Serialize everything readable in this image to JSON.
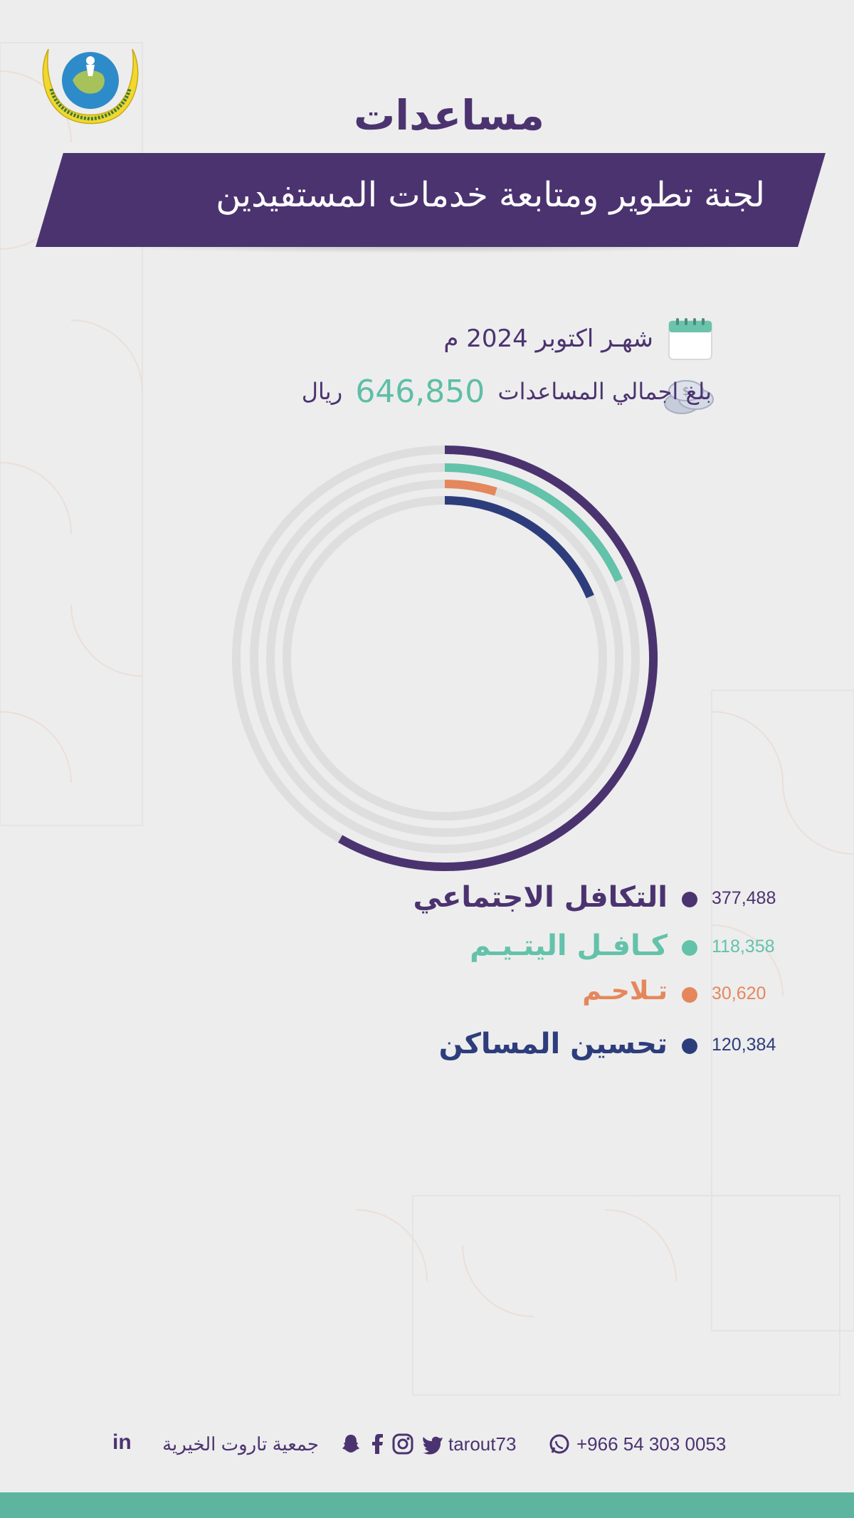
{
  "title": "مساعدات",
  "subtitle": "لجنة تطوير ومتابعة خدمات المستفيدين",
  "logo_text": "جمعية تاروت الخيرية للخدمات الاجتماعية",
  "month_label": "شهـر اكتوبر 2024 م",
  "total": {
    "prefix": "بلغ اجمالي المساعدات",
    "value": "646,850",
    "currency": "ريال"
  },
  "icons": {
    "month": "calendar-icon",
    "total": "coins-icon",
    "whatsapp": "whatsapp-icon",
    "twitter": "twitter-icon",
    "instagram": "instagram-icon",
    "facebook": "facebook-icon",
    "snapchat": "snapchat-icon",
    "linkedin": "linkedin-icon"
  },
  "chart_data": {
    "type": "radial-bar",
    "total": 646850,
    "series": [
      {
        "name": "التكافل الاجتماعي",
        "value": 377488,
        "value_label": "377,488",
        "color": "#4b3370"
      },
      {
        "name": "كـافـل اليتـيـم",
        "value": 118358,
        "value_label": "118,358",
        "color": "#63c2aa"
      },
      {
        "name": "تـلاحـم",
        "value": 30620,
        "value_label": "30,620",
        "color": "#e5875c"
      },
      {
        "name": "تحسين المساكن",
        "value": 120384,
        "value_label": "120,384",
        "color": "#2d3d7c"
      }
    ]
  },
  "footer": {
    "phone": "+966 54 303 0053",
    "handle": "tarout73",
    "org_name": "جمعية تاروت الخيرية"
  },
  "colors": {
    "primary": "#4b3370",
    "accent": "#5fbea6",
    "background": "#ededed",
    "ring_track": "#dedede"
  }
}
